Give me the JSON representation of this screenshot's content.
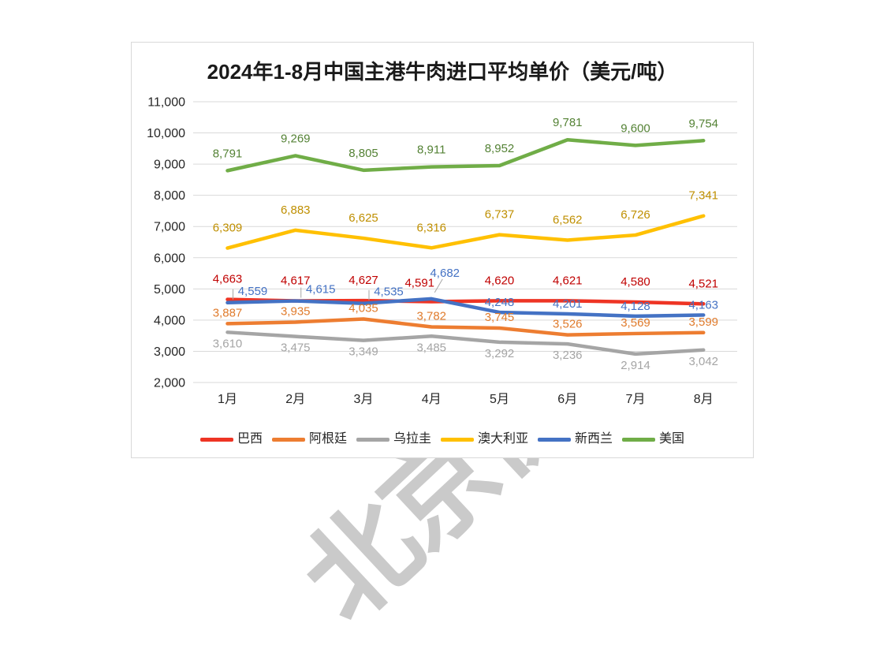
{
  "watermark": {
    "text": "北京价",
    "color": "#cacaca"
  },
  "chart_data": {
    "type": "line",
    "title": "2024年1-8月中国主港牛肉进口平均单价（美元/吨）",
    "xlabel": "",
    "ylabel": "",
    "categories": [
      "1月",
      "2月",
      "3月",
      "4月",
      "5月",
      "6月",
      "7月",
      "8月"
    ],
    "series": [
      {
        "name": "巴西",
        "color": "#ee3424",
        "label_color": "#c00000",
        "values": [
          4663,
          4617,
          4627,
          4591,
          4620,
          4621,
          4580,
          4521
        ]
      },
      {
        "name": "阿根廷",
        "color": "#ed7d31",
        "label_color": "#e07b2c",
        "values": [
          3887,
          3935,
          4035,
          3782,
          3745,
          3526,
          3569,
          3599
        ]
      },
      {
        "name": "乌拉圭",
        "color": "#a5a5a5",
        "label_color": "#a5a5a5",
        "values": [
          3610,
          3475,
          3349,
          3485,
          3292,
          3236,
          2914,
          3042
        ]
      },
      {
        "name": "澳大利亚",
        "color": "#ffc000",
        "label_color": "#bf8f00",
        "values": [
          6309,
          6883,
          6625,
          6316,
          6737,
          6562,
          6726,
          7341
        ]
      },
      {
        "name": "新西兰",
        "color": "#4472c4",
        "label_color": "#4472c4",
        "values": [
          4559,
          4615,
          4535,
          4682,
          4248,
          4201,
          4128,
          4163
        ]
      },
      {
        "name": "美国",
        "color": "#70ad47",
        "label_color": "#548235",
        "values": [
          8791,
          9269,
          8805,
          8911,
          8952,
          9781,
          9600,
          9754
        ]
      }
    ],
    "ylim": [
      2000,
      11000
    ],
    "ytick_step": 1000,
    "grid": true,
    "gridline_color": "#d9d9d9",
    "legend_position": "bottom",
    "data_labels": true
  }
}
